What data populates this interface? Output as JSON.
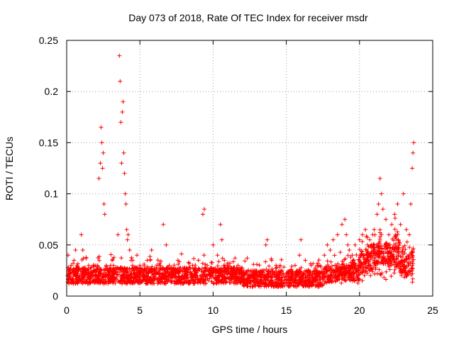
{
  "chart_data": {
    "type": "scatter",
    "title": "Day 073 of 2018, Rate Of TEC Index for receiver msdr",
    "xlabel": "GPS time / hours",
    "ylabel": "ROTI / TECUs",
    "xlim": [
      0,
      25
    ],
    "ylim": [
      0,
      0.25
    ],
    "xticks": [
      "0",
      "5",
      "10",
      "15",
      "20",
      "25"
    ],
    "yticks": [
      "0",
      "0.05",
      "0.1",
      "0.15",
      "0.2",
      "0.25"
    ],
    "grid": true,
    "marker": "+",
    "series_color": "#ff0000",
    "x": [
      0.1,
      0.2,
      0.3,
      0.5,
      0.6,
      0.9,
      1.0,
      1.1,
      1.3,
      1.5,
      1.7,
      1.9,
      2.1,
      2.2,
      2.3,
      2.35,
      2.4,
      2.45,
      2.5,
      2.55,
      2.6,
      2.7,
      2.8,
      2.9,
      3.0,
      3.1,
      3.2,
      3.3,
      3.5,
      3.6,
      3.65,
      3.7,
      3.75,
      3.8,
      3.85,
      3.9,
      3.95,
      4.0,
      4.05,
      4.1,
      4.15,
      4.2,
      4.3,
      4.4,
      4.5,
      4.6,
      4.8,
      5.0,
      5.2,
      5.5,
      5.8,
      6.0,
      6.3,
      6.6,
      6.8,
      7.0,
      7.3,
      7.6,
      8.0,
      8.3,
      8.6,
      9.0,
      9.3,
      9.4,
      9.6,
      10.0,
      10.3,
      10.5,
      10.6,
      10.8,
      11.0,
      11.3,
      11.7,
      12.0,
      12.3,
      12.6,
      13.0,
      13.3,
      13.6,
      13.7,
      14.0,
      14.3,
      14.7,
      15.0,
      15.3,
      15.6,
      15.9,
      16.0,
      16.3,
      16.7,
      17.0,
      17.3,
      17.6,
      17.8,
      18.0,
      18.2,
      18.5,
      18.8,
      19.0,
      19.1,
      19.2,
      19.3,
      19.5,
      19.7,
      20.0,
      20.2,
      20.4,
      20.5,
      20.7,
      20.9,
      21.0,
      21.2,
      21.3,
      21.4,
      21.5,
      21.6,
      21.8,
      22.0,
      22.2,
      22.4,
      22.6,
      22.8,
      23.0,
      23.2,
      23.4,
      23.5,
      23.6,
      23.65,
      23.7
    ],
    "y": [
      0.04,
      0.025,
      0.03,
      0.035,
      0.045,
      0.02,
      0.06,
      0.045,
      0.025,
      0.03,
      0.02,
      0.025,
      0.03,
      0.115,
      0.13,
      0.165,
      0.15,
      0.125,
      0.14,
      0.09,
      0.08,
      0.03,
      0.025,
      0.02,
      0.03,
      0.035,
      0.03,
      0.025,
      0.06,
      0.235,
      0.21,
      0.17,
      0.13,
      0.18,
      0.19,
      0.14,
      0.12,
      0.1,
      0.09,
      0.065,
      0.055,
      0.06,
      0.045,
      0.035,
      0.03,
      0.025,
      0.04,
      0.03,
      0.025,
      0.035,
      0.045,
      0.025,
      0.03,
      0.07,
      0.05,
      0.03,
      0.025,
      0.035,
      0.02,
      0.025,
      0.03,
      0.035,
      0.08,
      0.085,
      0.03,
      0.05,
      0.04,
      0.07,
      0.055,
      0.03,
      0.025,
      0.02,
      0.03,
      0.02,
      0.015,
      0.025,
      0.02,
      0.015,
      0.05,
      0.055,
      0.035,
      0.03,
      0.025,
      0.02,
      0.025,
      0.03,
      0.04,
      0.055,
      0.035,
      0.03,
      0.025,
      0.03,
      0.04,
      0.05,
      0.045,
      0.055,
      0.06,
      0.07,
      0.075,
      0.06,
      0.05,
      0.045,
      0.04,
      0.05,
      0.055,
      0.06,
      0.065,
      0.045,
      0.055,
      0.06,
      0.065,
      0.08,
      0.09,
      0.115,
      0.1,
      0.085,
      0.075,
      0.06,
      0.07,
      0.08,
      0.09,
      0.07,
      0.1,
      0.065,
      0.06,
      0.09,
      0.125,
      0.14,
      0.15
    ]
  }
}
